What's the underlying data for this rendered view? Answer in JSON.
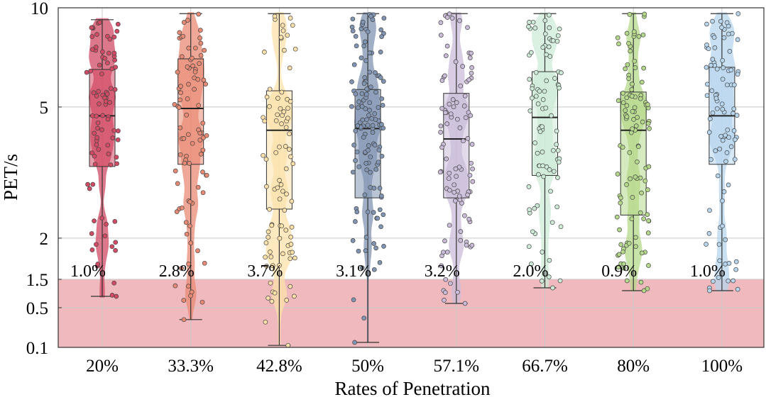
{
  "chart_data": {
    "type": "box-violin-scatter",
    "title": "",
    "xlabel": "Rates of Penetration",
    "ylabel": "PET/s",
    "y_scale": "piecewise (0.1-0.5-1.5 compressed, 1.5-10 logarithmic)",
    "ylim": [
      0.1,
      10
    ],
    "y_ticks": [
      {
        "value": 0.1,
        "label": "0.1"
      },
      {
        "value": 0.5,
        "label": "0.5"
      },
      {
        "value": 1.5,
        "label": "1.5"
      },
      {
        "value": 2,
        "label": "2"
      },
      {
        "value": 5,
        "label": "5"
      },
      {
        "value": 10,
        "label": "10"
      }
    ],
    "grid": true,
    "danger_zone": {
      "from": 0.1,
      "to": 1.5,
      "color": "#f0b9bd"
    },
    "categories": [
      "20%",
      "33.3%",
      "42.8%",
      "50%",
      "57.1%",
      "66.7%",
      "80%",
      "100%"
    ],
    "series": [
      {
        "name": "20%",
        "color": "#d24a64",
        "n": 85,
        "whisker_low": 0.9,
        "q1": 3.3,
        "median": 4.7,
        "q3": 6.5,
        "whisker_high": 9.2,
        "below_threshold_pct": "1.0%"
      },
      {
        "name": "33.3%",
        "color": "#e98b74",
        "n": 85,
        "whisker_low": 0.38,
        "q1": 3.35,
        "median": 4.95,
        "q3": 7.0,
        "whisker_high": 9.6,
        "below_threshold_pct": "2.8%"
      },
      {
        "name": "42.8%",
        "color": "#fbe1a9",
        "n": 85,
        "whisker_low": 0.12,
        "q1": 2.45,
        "median": 4.25,
        "q3": 5.6,
        "whisker_high": 9.6,
        "below_threshold_pct": "3.7%"
      },
      {
        "name": "50%",
        "color": "#8094b3",
        "n": 130,
        "whisker_low": 0.15,
        "q1": 2.65,
        "median": 4.3,
        "q3": 5.65,
        "whisker_high": 9.6,
        "below_threshold_pct": "3.1%"
      },
      {
        "name": "57.1%",
        "color": "#cbbcd9",
        "n": 95,
        "whisker_low": 0.65,
        "q1": 2.65,
        "median": 4.0,
        "q3": 5.5,
        "whisker_high": 9.6,
        "below_threshold_pct": "3.2%"
      },
      {
        "name": "66.7%",
        "color": "#cdebd7",
        "n": 85,
        "whisker_low": 1.2,
        "q1": 3.1,
        "median": 4.65,
        "q3": 6.4,
        "whisker_high": 9.6,
        "below_threshold_pct": "2.0%"
      },
      {
        "name": "80%",
        "color": "#b5d98a",
        "n": 105,
        "whisker_low": 1.1,
        "q1": 2.35,
        "median": 4.25,
        "q3": 5.55,
        "whisker_high": 9.6,
        "below_threshold_pct": "0.9%"
      },
      {
        "name": "100%",
        "color": "#b7d6ee",
        "n": 90,
        "whisker_low": 1.1,
        "q1": 3.35,
        "median": 4.7,
        "q3": 6.6,
        "whisker_high": 9.6,
        "below_threshold_pct": "1.0%"
      }
    ],
    "colors": {
      "grid": "#c8c8c8",
      "axis": "#333333",
      "box_edge": "#333333",
      "dot_edge": "#444444"
    }
  }
}
